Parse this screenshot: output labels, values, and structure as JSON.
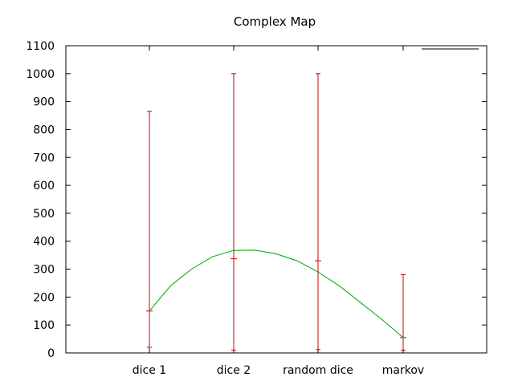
{
  "chart_data": {
    "type": "line",
    "title": "Complex Map",
    "xlabel": "",
    "ylabel": "",
    "categories": [
      "dice 1",
      "dice 2",
      "random dice",
      "markov"
    ],
    "ylim": [
      0,
      1100
    ],
    "yticks": [
      0,
      100,
      200,
      300,
      400,
      500,
      600,
      700,
      800,
      900,
      1000,
      1100
    ],
    "grid": false,
    "legend": "top-right",
    "series": [
      {
        "name": "",
        "kind": "errorbars",
        "color": "#cc0000",
        "points": [
          {
            "category": "dice 1",
            "value": 150,
            "low": 20,
            "high": 865
          },
          {
            "category": "dice 2",
            "value": 337,
            "low": 10,
            "high": 1000
          },
          {
            "category": "random dice",
            "value": 330,
            "low": 12,
            "high": 1000
          },
          {
            "category": "markov",
            "value": 55,
            "low": 10,
            "high": 280
          }
        ]
      },
      {
        "name": "",
        "kind": "fit-curve",
        "color": "#00a000",
        "x": [
          0,
          0.25,
          0.5,
          0.75,
          1,
          1.25,
          1.5,
          1.75,
          2,
          2.25,
          2.5,
          2.75,
          3
        ],
        "values": [
          150,
          240,
          300,
          345,
          367,
          368,
          355,
          330,
          290,
          240,
          180,
          120,
          55
        ]
      }
    ]
  }
}
